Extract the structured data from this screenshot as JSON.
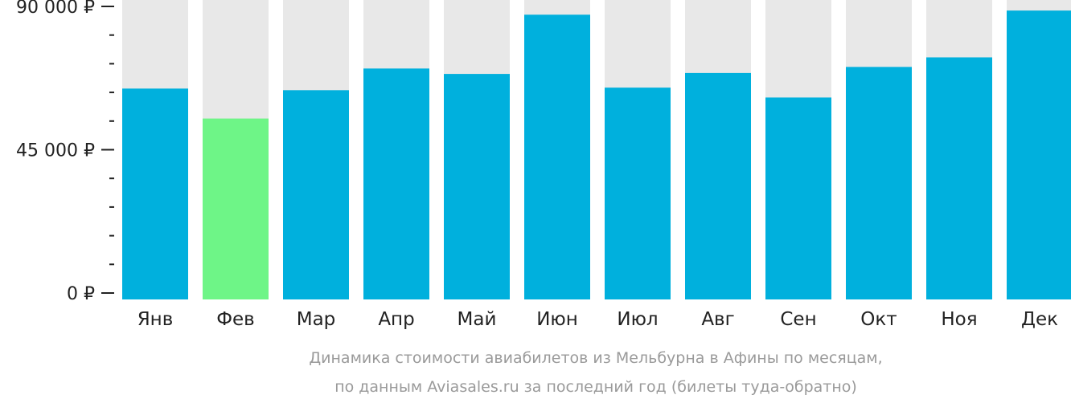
{
  "chart_data": {
    "type": "bar",
    "categories": [
      "Янв",
      "Фев",
      "Мар",
      "Апр",
      "Май",
      "Июн",
      "Июл",
      "Авг",
      "Сен",
      "Окт",
      "Ноя",
      "Дек"
    ],
    "values": [
      64200,
      54800,
      63700,
      70500,
      68800,
      87400,
      64500,
      69100,
      61400,
      71000,
      74000,
      88700
    ],
    "highlighted_category": "Фев",
    "ylim": [
      0,
      90000
    ],
    "y_ticks": [
      {
        "value": 0,
        "label": "0 ₽"
      },
      {
        "value": 45000,
        "label": "45 000 ₽"
      },
      {
        "value": 90000,
        "label": "90 000 ₽"
      }
    ],
    "y_minor_tick_step": 9000,
    "grid": false,
    "caption_lines": [
      "Динамика стоимости авиабилетов из Мельбурна в Афины по месяцам,",
      "по данным Aviasales.ru за последний год (билеты туда-обратно)"
    ],
    "colors": {
      "bar": "#00b0dd",
      "bar_highlight": "#6ef587",
      "bar_background": "#e8e8e8",
      "text": "#222222",
      "caption": "#9a9a9a"
    }
  }
}
